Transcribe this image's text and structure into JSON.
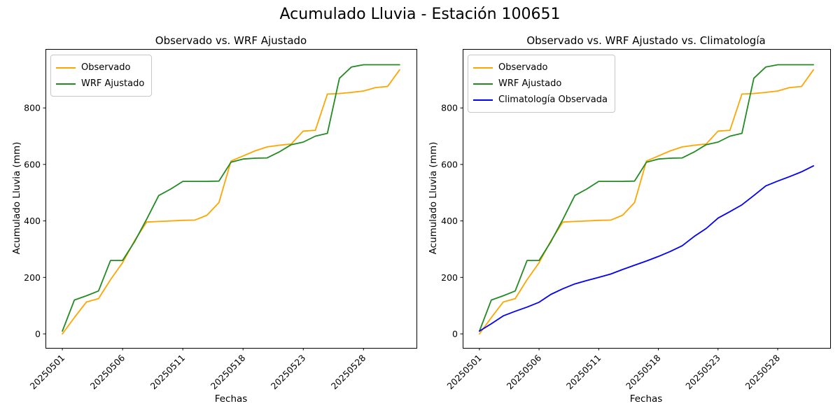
{
  "figure_title": "Acumulado Lluvia - Estación 100651",
  "chart_data": {
    "type": "line",
    "x_tick_labels": [
      "20250501",
      "20250506",
      "20250511",
      "20250518",
      "20250523",
      "20250528"
    ],
    "x_tick_indices": [
      0,
      5,
      10,
      15,
      20,
      25
    ],
    "n_points": 29,
    "y_ticks": [
      0,
      200,
      400,
      600,
      800
    ],
    "ylim": [
      -50,
      1010
    ],
    "grid": false,
    "series": [
      {
        "name": "Observado",
        "color": "#FFA500",
        "values": [
          0,
          58,
          113,
          125,
          192,
          252,
          330,
          396,
          398,
          400,
          402,
          403,
          420,
          465,
          612,
          630,
          648,
          662,
          668,
          672,
          718,
          721,
          849,
          851,
          855,
          860,
          872,
          876,
          935
        ]
      },
      {
        "name": "WRF Ajustado",
        "color": "#228B22",
        "values": [
          10,
          120,
          135,
          152,
          260,
          260,
          327,
          406,
          490,
          513,
          540,
          540,
          540,
          541,
          608,
          619,
          622,
          623,
          644,
          670,
          679,
          700,
          710,
          905,
          945,
          953,
          953,
          953,
          953
        ]
      },
      {
        "name": "Climatología Observada",
        "color": "#0000FF",
        "values": [
          10,
          36,
          64,
          80,
          95,
          112,
          140,
          160,
          177,
          189,
          200,
          212,
          228,
          243,
          258,
          274,
          292,
          312,
          345,
          373,
          410,
          433,
          457,
          490,
          524,
          541,
          557,
          574,
          595
        ]
      }
    ],
    "panels": [
      {
        "title": "Observado vs. WRF Ajustado",
        "xlabel": "Fechas",
        "ylabel": "Acumulado Lluvia (mm)",
        "legend_position": "upper left",
        "legend": [
          "Observado",
          "WRF Ajustado"
        ],
        "series_indices": [
          0,
          1
        ]
      },
      {
        "title": "Observado vs. WRF Ajustado vs. Climatología",
        "xlabel": "Fechas",
        "ylabel": "Acumulado Lluvia (mm)",
        "legend_position": "upper left",
        "legend": [
          "Observado",
          "WRF Ajustado",
          "Climatología Observada"
        ],
        "series_indices": [
          0,
          1,
          2
        ]
      }
    ]
  }
}
